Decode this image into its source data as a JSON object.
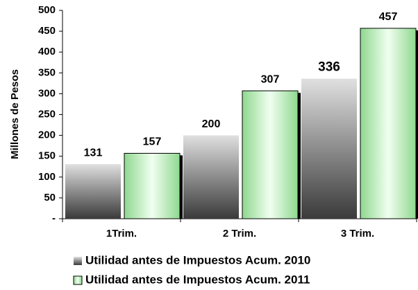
{
  "chart_data": {
    "type": "bar",
    "y_label": "Millones de Pesos",
    "categories": [
      "1Trim.",
      "2 Trim.",
      "3 Trim."
    ],
    "series": [
      {
        "name": "Utilidad antes de Impuestos Acum. 2010",
        "color": "#8c8c8c",
        "values": [
          131,
          200,
          336
        ]
      },
      {
        "name": "Utilidad antes de Impuestos Acum. 2011",
        "color": "#8fd88f",
        "values": [
          157,
          307,
          457
        ]
      }
    ],
    "ylim": [
      0,
      500
    ],
    "yticks": [
      {
        "value": 0,
        "label": "-"
      },
      50,
      100,
      150,
      200,
      250,
      300,
      350,
      400,
      450,
      500
    ],
    "legend": "bottom"
  }
}
